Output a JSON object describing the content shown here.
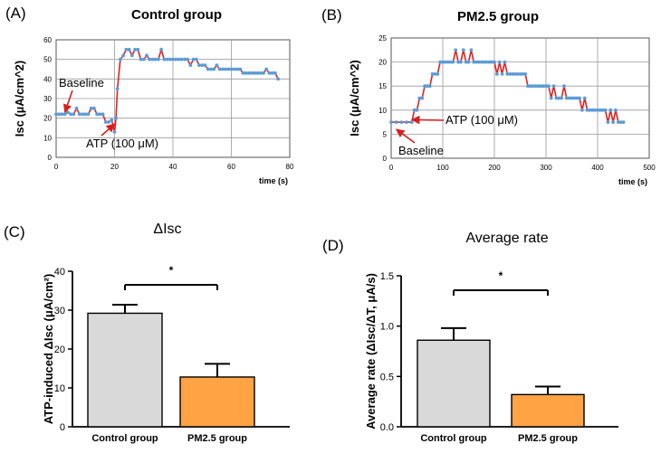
{
  "panels": {
    "A": {
      "label": "(A)",
      "title": "Control group"
    },
    "B": {
      "label": "(B)",
      "title": "PM2.5 group"
    },
    "C": {
      "label": "(C)",
      "title": "ΔIsc"
    },
    "D": {
      "label": "(D)",
      "title": "Average rate"
    }
  },
  "chart_data": [
    {
      "type": "line",
      "title": "Control group",
      "xlabel": "time (s)",
      "ylabel": "Isc  (µA/cm^2)",
      "xlim": [
        0,
        80
      ],
      "ylim": [
        0,
        60
      ],
      "xticks": [
        0,
        20,
        40,
        60,
        80
      ],
      "yticks": [
        0,
        10,
        20,
        30,
        40,
        50,
        60
      ],
      "grid": true,
      "x": [
        0,
        1,
        2,
        3,
        4,
        5,
        6,
        7,
        8,
        9,
        10,
        11,
        12,
        13,
        14,
        15,
        16,
        17,
        18,
        19,
        20,
        20.5,
        21,
        22,
        23,
        24,
        25,
        26,
        27,
        28,
        29,
        30,
        31,
        32,
        33,
        34,
        35,
        36,
        37,
        38,
        39,
        40,
        41,
        42,
        43,
        44,
        45,
        46,
        47,
        48,
        49,
        50,
        51,
        52,
        53,
        54,
        55,
        56,
        57,
        58,
        59,
        60,
        61,
        62,
        63,
        64,
        65,
        66,
        67,
        68,
        69,
        70,
        71,
        72,
        73,
        74,
        75,
        76
      ],
      "y": [
        22,
        22,
        22,
        22,
        23,
        22,
        22,
        25,
        22,
        22,
        22,
        22,
        25,
        25,
        22,
        22,
        22,
        18,
        18,
        19,
        13,
        20,
        35,
        50,
        52,
        55,
        55,
        52,
        55,
        55,
        50,
        50,
        52,
        50,
        50,
        50,
        50,
        55,
        50,
        50,
        50,
        50,
        50,
        50,
        50,
        50,
        50,
        47,
        50,
        50,
        47,
        47,
        47,
        45,
        45,
        45,
        47,
        45,
        45,
        45,
        45,
        45,
        45,
        45,
        45,
        43,
        43,
        43,
        43,
        43,
        43,
        43,
        43,
        45,
        43,
        43,
        43,
        40
      ],
      "annotations": [
        {
          "text": "Baseline",
          "x": 3,
          "y": 23
        },
        {
          "text": "ATP (100 μM)",
          "x": 20,
          "y": 17
        }
      ],
      "series_color": "#e02020",
      "marker_color": "#5b9bd5"
    },
    {
      "type": "line",
      "title": "PM2.5 group",
      "xlabel": "time (s)",
      "ylabel": "Isc  (µA/cm^2)",
      "xlim": [
        0,
        500
      ],
      "ylim": [
        0,
        25
      ],
      "xticks": [
        0,
        100,
        200,
        300,
        400,
        500
      ],
      "yticks": [
        0,
        5,
        10,
        15,
        20,
        25
      ],
      "grid": true,
      "x": [
        0,
        10,
        20,
        30,
        40,
        45,
        50,
        55,
        60,
        65,
        70,
        75,
        80,
        85,
        90,
        95,
        100,
        105,
        110,
        115,
        120,
        125,
        130,
        135,
        140,
        145,
        150,
        155,
        160,
        165,
        170,
        175,
        180,
        185,
        190,
        195,
        200,
        205,
        210,
        215,
        220,
        225,
        230,
        235,
        240,
        245,
        250,
        255,
        260,
        265,
        270,
        275,
        280,
        285,
        290,
        295,
        300,
        305,
        310,
        315,
        320,
        325,
        330,
        335,
        340,
        345,
        350,
        355,
        360,
        365,
        370,
        375,
        380,
        385,
        390,
        395,
        400,
        405,
        410,
        415,
        420,
        425,
        430,
        435,
        440,
        445,
        450
      ],
      "y": [
        7.5,
        7.5,
        7.5,
        7.5,
        7.5,
        10,
        10,
        12.5,
        12.5,
        15,
        15,
        15,
        17.5,
        17.5,
        17.5,
        20,
        20,
        20,
        20,
        20,
        20,
        22.5,
        20,
        20,
        22.5,
        20,
        20,
        22.5,
        20,
        20,
        20,
        20,
        20,
        20,
        20,
        20,
        20,
        17.5,
        20,
        17.5,
        20,
        17.5,
        17.5,
        17.5,
        17.5,
        17.5,
        17.5,
        17.5,
        17.5,
        15,
        15,
        15,
        15,
        15,
        15,
        15,
        15,
        15,
        12.5,
        15,
        12.5,
        12.5,
        12.5,
        15,
        12.5,
        12.5,
        12.5,
        12.5,
        12.5,
        12.5,
        10,
        12.5,
        10,
        10,
        10,
        10,
        10,
        10,
        10,
        10,
        7.5,
        10,
        7.5,
        10,
        7.5,
        7.5,
        7.5
      ],
      "annotations": [
        {
          "text": "ATP (100 μM)",
          "x": 40,
          "y": 8
        },
        {
          "text": "Baseline",
          "x": 10,
          "y": 6
        }
      ],
      "series_color": "#e02020",
      "marker_color": "#5b9bd5"
    },
    {
      "type": "bar",
      "title": "ΔIsc",
      "categories": [
        "Control group",
        "PM2.5 group"
      ],
      "values": [
        29.2,
        12.8
      ],
      "errors": [
        2.2,
        3.4
      ],
      "colors": [
        "#d9d9d9",
        "#ffa345"
      ],
      "ylabel": "ATP-induced ΔIsc (μA/cm²)",
      "ylim": [
        0,
        40
      ],
      "yticks": [
        0,
        10,
        20,
        30,
        40
      ],
      "significance": "*"
    },
    {
      "type": "bar",
      "title": "Average rate",
      "categories": [
        "Control group",
        "PM2.5 group"
      ],
      "values": [
        0.86,
        0.32
      ],
      "errors": [
        0.12,
        0.08
      ],
      "colors": [
        "#d9d9d9",
        "#ffa345"
      ],
      "ylabel": "Average rate (ΔIsc/ΔT, μA/s)",
      "ylim": [
        0,
        1.5
      ],
      "yticks": [
        0.0,
        0.5,
        1.0,
        1.5
      ],
      "significance": "*"
    }
  ]
}
